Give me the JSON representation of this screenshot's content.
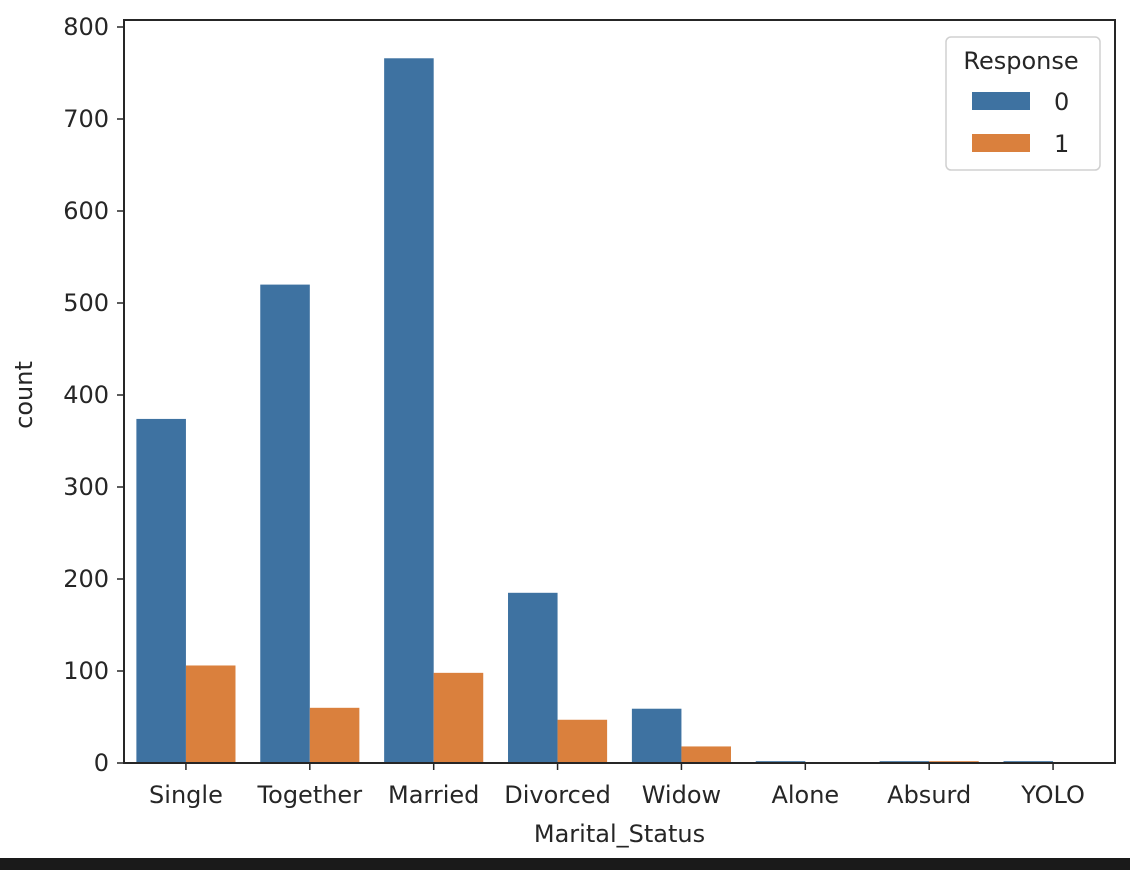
{
  "chart_data": {
    "type": "bar",
    "title": "",
    "xlabel": "Marital_Status",
    "ylabel": "count",
    "categories": [
      "Single",
      "Together",
      "Married",
      "Divorced",
      "Widow",
      "Alone",
      "Absurd",
      "YOLO"
    ],
    "series": [
      {
        "name": "0",
        "color": "#3e72a1",
        "values": [
          374,
          520,
          766,
          185,
          59,
          2,
          2,
          2
        ]
      },
      {
        "name": "1",
        "color": "#da803d",
        "values": [
          106,
          60,
          98,
          47,
          18,
          1,
          2,
          1
        ]
      }
    ],
    "ylim": [
      0,
      800
    ],
    "yticks": [
      0,
      100,
      200,
      300,
      400,
      500,
      600,
      700,
      800
    ],
    "grid": false,
    "legend": {
      "title": "Response",
      "placement": "top-right"
    }
  }
}
